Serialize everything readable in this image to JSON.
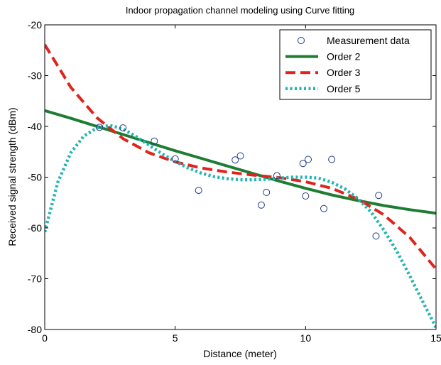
{
  "chart_data": {
    "type": "line",
    "title": "Indoor propagation channel modeling using Curve fitting",
    "xlabel": "Distance (meter)",
    "ylabel": "Received signal strength (dBm)",
    "xlim": [
      0,
      15
    ],
    "ylim": [
      -80,
      -20
    ],
    "xticks": [
      0,
      5,
      10,
      15
    ],
    "yticks": [
      -20,
      -30,
      -40,
      -50,
      -60,
      -70,
      -80
    ],
    "xtick_labels": [
      "0",
      "5",
      "10",
      "15"
    ],
    "ytick_labels": [
      "-20",
      "-30",
      "-40",
      "-50",
      "-60",
      "-70",
      "-80"
    ],
    "grid": false,
    "legend_position": "top-right",
    "series": [
      {
        "name": "Measurement data",
        "kind": "scatter",
        "color": "#1f3a8f",
        "marker": "circle-open",
        "x": [
          2.1,
          3.0,
          4.2,
          5.0,
          5.9,
          7.3,
          7.5,
          8.3,
          8.5,
          8.9,
          9.9,
          10.0,
          10.1,
          10.7,
          11.0,
          12.7,
          12.8
        ],
        "y": [
          -40.2,
          -40.3,
          -42.9,
          -46.4,
          -52.6,
          -46.6,
          -45.8,
          -55.5,
          -53.0,
          -49.7,
          -47.3,
          -53.7,
          -46.5,
          -56.2,
          -46.5,
          -61.6,
          -53.6
        ]
      },
      {
        "name": "Order 2",
        "kind": "line",
        "color": "#1e7d32",
        "dash": "solid",
        "x": [
          0,
          1,
          2,
          3,
          4,
          5,
          6,
          7,
          8,
          9,
          10,
          11,
          12,
          13,
          14,
          15
        ],
        "y": [
          -36.9,
          -38.4,
          -40.0,
          -41.6,
          -43.2,
          -44.8,
          -46.3,
          -47.8,
          -49.3,
          -50.8,
          -52.2,
          -53.5,
          -54.6,
          -55.6,
          -56.4,
          -57.1
        ]
      },
      {
        "name": "Order 3",
        "kind": "line",
        "color": "#e0231d",
        "dash": "dashed",
        "x": [
          0,
          1,
          2,
          3,
          4,
          5,
          6,
          7,
          8,
          9,
          10,
          11,
          12,
          13,
          14,
          15
        ],
        "y": [
          -23.9,
          -32.3,
          -38.3,
          -42.4,
          -45.2,
          -47.0,
          -48.2,
          -49.0,
          -49.6,
          -50.1,
          -50.9,
          -52.2,
          -54.3,
          -57.4,
          -61.9,
          -68.1
        ]
      },
      {
        "name": "Order 5",
        "kind": "line",
        "color": "#1fb5b1",
        "dash": "dotted",
        "x": [
          0,
          0.5,
          1,
          1.5,
          2,
          2.5,
          3,
          3.5,
          4,
          4.5,
          5,
          5.5,
          6,
          6.5,
          7,
          7.5,
          8,
          8.5,
          9,
          9.5,
          10,
          10.5,
          11,
          11.5,
          12,
          12.5,
          13,
          13.5,
          14,
          14.5,
          15
        ],
        "y": [
          -60.8,
          -51.0,
          -45.2,
          -41.9,
          -40.3,
          -39.8,
          -40.5,
          -42.0,
          -43.7,
          -45.4,
          -46.9,
          -48.2,
          -49.2,
          -49.9,
          -50.3,
          -50.5,
          -50.5,
          -50.4,
          -50.2,
          -50.0,
          -50.0,
          -50.2,
          -51.0,
          -52.3,
          -54.2,
          -56.8,
          -60.4,
          -64.6,
          -69.5,
          -74.6,
          -79.6
        ]
      }
    ]
  }
}
